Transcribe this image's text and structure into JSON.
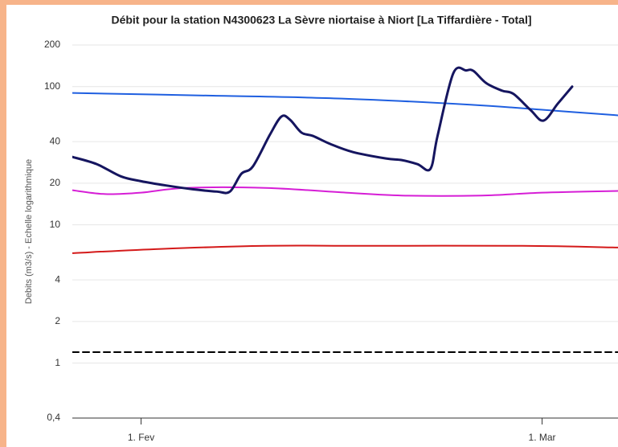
{
  "chart_data": {
    "type": "line",
    "title": "Débit pour la station N4300623 La Sèvre niortaise à Niort [La Tiffardière - Total]",
    "y_label": "Debits (m3/s) - Echelle logarithmique",
    "log_y": true,
    "grid": true,
    "xlim": [
      -4.8,
      33.3
    ],
    "xticks": [
      {
        "value": 0,
        "label": "1. Fev"
      },
      {
        "value": 28,
        "label": "1. Mar"
      }
    ],
    "ylim": [
      0.4,
      200
    ],
    "yticks": [
      {
        "value": 0.4,
        "label": "0,4"
      },
      1,
      2,
      4,
      10,
      20,
      40,
      100,
      200
    ],
    "series": [
      {
        "color": "#000000",
        "dash": true,
        "x": [
          -4.8,
          33.3
        ],
        "values": [
          1.2,
          1.2
        ]
      },
      {
        "color": "#d41a1a",
        "x": [
          -4.8,
          1.4,
          8.7,
          15.4,
          26.6,
          33.3
        ],
        "values": [
          6.24,
          6.7,
          7.05,
          7.05,
          7.05,
          6.85
        ]
      },
      {
        "color": "#d61ed6",
        "x": [
          -4.8,
          -2.5,
          0,
          3.1,
          8.7,
          14.3,
          18.2,
          23.8,
          28,
          33.3
        ],
        "values": [
          17.8,
          16.7,
          17.1,
          18.5,
          18.5,
          17.1,
          16.3,
          16.3,
          17.1,
          17.6
        ]
      },
      {
        "color": "#1f5fe0",
        "x": [
          -4.8,
          5,
          14,
          23,
          28,
          33.3
        ],
        "values": [
          90,
          86,
          82,
          74,
          68,
          62
        ]
      },
      {
        "color": "#15155f",
        "width": 3,
        "x": [
          -4.8,
          -3.1,
          -1.4,
          0,
          1.7,
          3.6,
          5.3,
          6.2,
          7,
          7.8,
          9,
          9.8,
          10.4,
          11.2,
          12,
          13.2,
          14.8,
          17.1,
          18.2,
          19.3,
          20.2,
          20.7,
          21.8,
          22.7,
          23.2,
          24.1,
          25.2,
          26,
          27.2,
          28.1,
          29.1,
          30.1
        ],
        "values": [
          31,
          27.5,
          22.4,
          20.7,
          19.3,
          18.1,
          17.4,
          17.4,
          23.4,
          26.4,
          45,
          60.8,
          57.6,
          46.5,
          44,
          38.5,
          33.6,
          30.2,
          29.4,
          27.5,
          25.4,
          44,
          125,
          131,
          130,
          106,
          93.5,
          88.6,
          67.6,
          56.8,
          75.4,
          100
        ]
      }
    ]
  }
}
